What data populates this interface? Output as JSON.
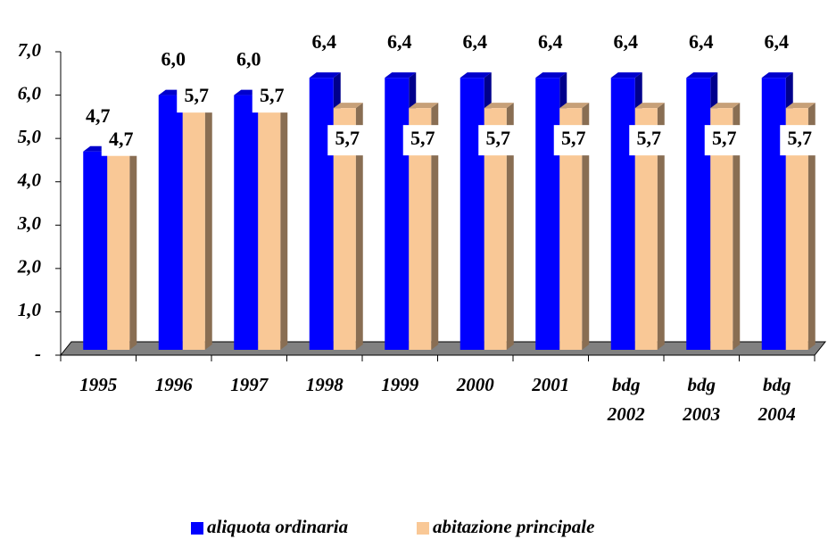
{
  "chart_data": {
    "type": "bar",
    "categories": [
      "1995",
      "1996",
      "1997",
      "1998",
      "1999",
      "2000",
      "2001",
      "bdg 2002",
      "bdg 2003",
      "bdg 2004"
    ],
    "series": [
      {
        "name": "aliquota ordinaria",
        "color": "#0000ff",
        "values": [
          4.7,
          6.0,
          6.0,
          6.4,
          6.4,
          6.4,
          6.4,
          6.4,
          6.4,
          6.4
        ],
        "value_labels": [
          "4,7",
          "6,0",
          "6,0",
          "6,4",
          "6,4",
          "6,4",
          "6,4",
          "6,4",
          "6,4",
          "6,4"
        ]
      },
      {
        "name": "abitazione principale",
        "color": "#f9c896",
        "values": [
          4.7,
          5.7,
          5.7,
          5.7,
          5.7,
          5.7,
          5.7,
          5.7,
          5.7,
          5.7
        ],
        "value_labels": [
          "4,7",
          "5,7",
          "5,7",
          "5,7",
          "5,7",
          "5,7",
          "5,7",
          "5,7",
          "5,7",
          "5,7"
        ]
      }
    ],
    "ylim": [
      0,
      7
    ],
    "yticks": [
      {
        "value": 0,
        "label": "-"
      },
      {
        "value": 1,
        "label": "1,0"
      },
      {
        "value": 2,
        "label": "2,0"
      },
      {
        "value": 3,
        "label": "3,0"
      },
      {
        "value": 4,
        "label": "4,0"
      },
      {
        "value": 5,
        "label": "5,0"
      },
      {
        "value": 6,
        "label": "6,0"
      },
      {
        "value": 7,
        "label": "7,0"
      }
    ],
    "legend": "bottom"
  }
}
